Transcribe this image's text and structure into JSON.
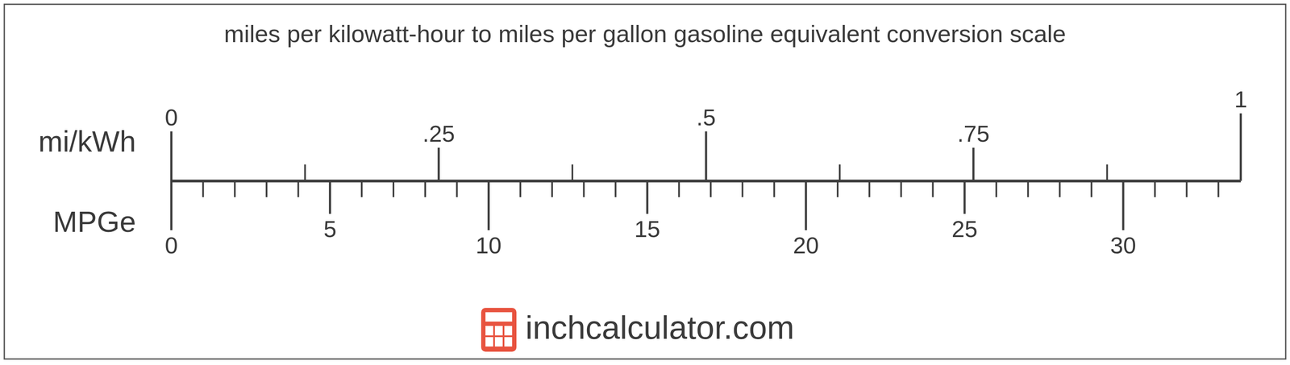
{
  "chart_data": {
    "type": "scale",
    "title": "miles per kilowatt-hour to miles per gallon gasoline equivalent conversion scale",
    "axes": [
      {
        "label": "mi/kWh",
        "xlim": [
          0,
          1
        ],
        "xticks": [
          0,
          {
            "value": 0.25,
            "label": ".25"
          },
          {
            "value": 0.5,
            "label": ".5"
          },
          {
            "value": 0.75,
            "label": ".75"
          },
          1
        ],
        "minor_ticks": [
          0.125,
          0.375,
          0.625,
          0.875
        ]
      },
      {
        "label": "MPGe",
        "xlim": [
          0,
          33.705
        ],
        "xticks": [
          0,
          5,
          10,
          15,
          20,
          25,
          30
        ],
        "minor_ticks": [
          1,
          2,
          3,
          4,
          6,
          7,
          8,
          9,
          11,
          12,
          13,
          14,
          16,
          17,
          18,
          19,
          21,
          22,
          23,
          24,
          26,
          27,
          28,
          29,
          31,
          32,
          33
        ]
      }
    ],
    "footer": "inchcalculator.com"
  }
}
